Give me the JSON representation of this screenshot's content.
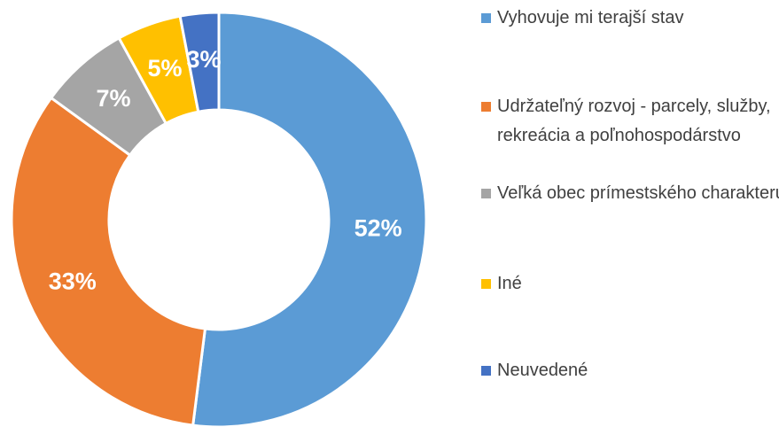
{
  "chart_data": {
    "type": "donut",
    "categories": [
      "Vyhovuje mi terajší stav",
      "Udržateľný rozvoj - parcely, služby, rekreácia a poľnohospodárstvo",
      "Veľká obec prímestského charakteru",
      "Iné",
      "Neuvedené"
    ],
    "values": [
      52,
      33,
      7,
      5,
      3
    ],
    "value_labels": [
      "52%",
      "33%",
      "7%",
      "5%",
      "3%"
    ],
    "colors": [
      "#5b9bd5",
      "#ed7d31",
      "#a5a5a5",
      "#ffc000",
      "#4472c4"
    ]
  }
}
